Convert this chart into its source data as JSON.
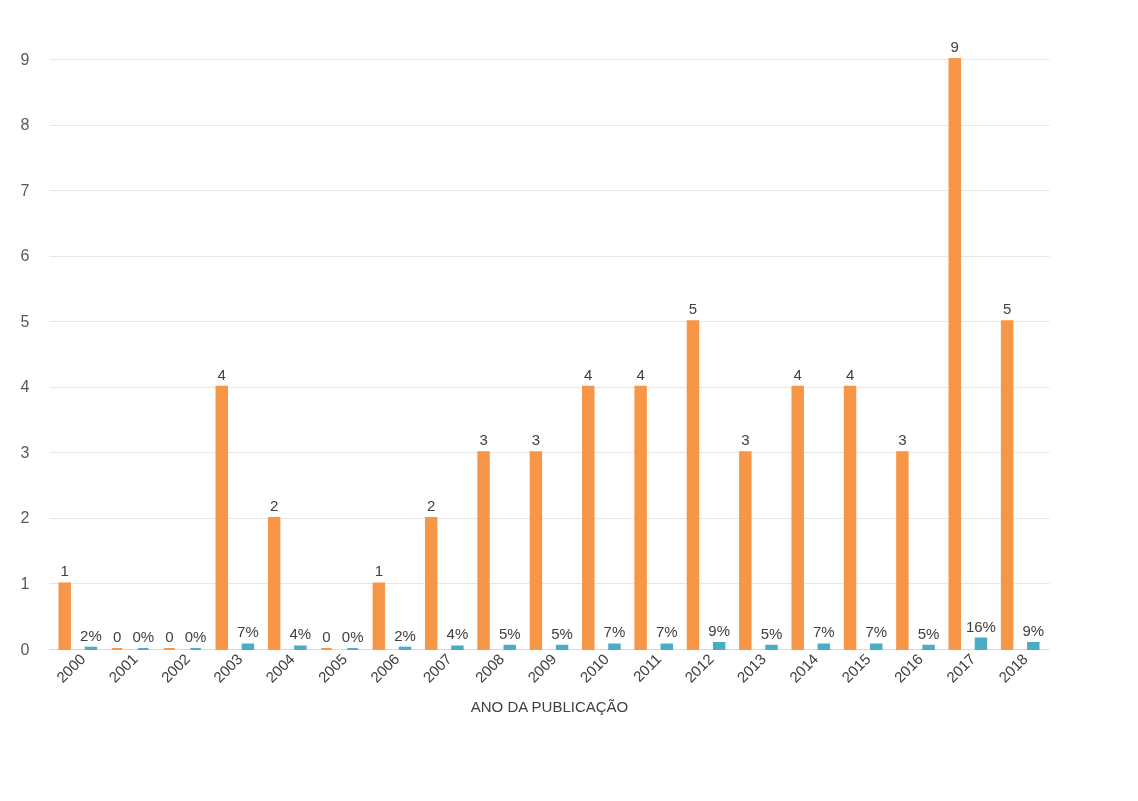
{
  "chart_data": {
    "type": "bar",
    "xlabel": "ANO DA PUBLICAÇÃO",
    "categories": [
      "2000",
      "2001",
      "2002",
      "2003",
      "2004",
      "2005",
      "2006",
      "2007",
      "2008",
      "2009",
      "2010",
      "2011",
      "2012",
      "2013",
      "2014",
      "2015",
      "2016",
      "2017",
      "2018"
    ],
    "series": [
      {
        "color": "#f79646",
        "values": [
          1,
          0,
          0,
          4,
          2,
          0,
          1,
          2,
          3,
          3,
          4,
          4,
          5,
          3,
          4,
          4,
          3,
          9,
          5
        ],
        "value_labels": [
          "1",
          "0",
          "0",
          "4",
          "2",
          "0",
          "1",
          "2",
          "3",
          "3",
          "4",
          "4",
          "5",
          "3",
          "4",
          "4",
          "3",
          "9",
          "5"
        ]
      },
      {
        "color": "#4bacc6",
        "values": [
          0.02,
          0,
          0,
          0.07,
          0.04,
          0,
          0.02,
          0.04,
          0.05,
          0.05,
          0.07,
          0.07,
          0.09,
          0.05,
          0.07,
          0.07,
          0.05,
          0.16,
          0.09
        ],
        "value_labels": [
          "2%",
          "0%",
          "0%",
          "7%",
          "4%",
          "0%",
          "2%",
          "4%",
          "5%",
          "5%",
          "7%",
          "7%",
          "9%",
          "5%",
          "7%",
          "7%",
          "5%",
          "16%",
          "9%"
        ]
      }
    ],
    "ylim": [
      0,
      9
    ],
    "yticks": [
      0,
      1,
      2,
      3,
      4,
      5,
      6,
      7,
      8,
      9
    ],
    "grid": "y",
    "legend": false
  }
}
